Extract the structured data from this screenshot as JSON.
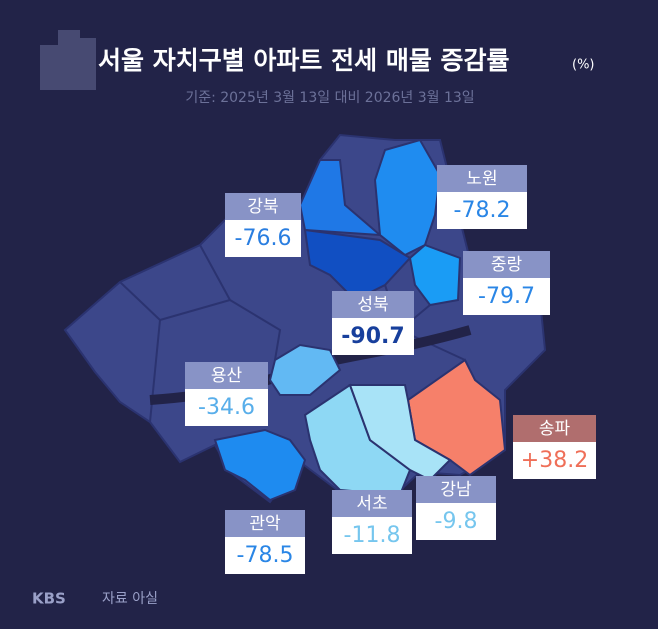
{
  "map": {
    "title": "서울 자치구별 아파트 전세 매물 증감률",
    "unit": "(%)",
    "subtitle": "기준: 2025년 3월 13일 대비 2026년 3월 13일",
    "regions": [
      {
        "name": "강북",
        "value": -76.6,
        "color": "#1f78e6",
        "label_color": "#2a7ee0"
      },
      {
        "name": "노원",
        "value": -78.2,
        "color": "#1f8cf0",
        "label_color": "#2a86e6"
      },
      {
        "name": "중랑",
        "value": -79.7,
        "color": "#1a9cf5",
        "label_color": "#2a86e6"
      },
      {
        "name": "성북",
        "value": -90.7,
        "color": "#114fc2",
        "label_color": "#173f9c"
      },
      {
        "name": "용산",
        "value": -34.6,
        "color": "#62b9f3",
        "label_color": "#58aeea"
      },
      {
        "name": "송파",
        "value": 38.2,
        "value_label": "+38.2",
        "color": "#f6806a",
        "label_color": "#ef6f58"
      },
      {
        "name": "관악",
        "value": -78.5,
        "color": "#1e8bf0",
        "label_color": "#2a86e6"
      },
      {
        "name": "서초",
        "value": -11.8,
        "color": "#8ed8f4",
        "label_color": "#76c6ee"
      },
      {
        "name": "강남",
        "value": -9.8,
        "color": "#a8e3f7",
        "label_color": "#76c6ee"
      }
    ],
    "logo": "KBS",
    "source": "자료 아실"
  }
}
